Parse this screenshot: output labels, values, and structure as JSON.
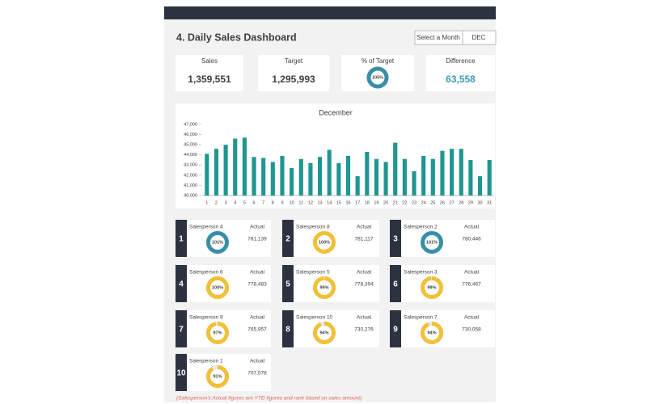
{
  "header": {
    "title": "4. Daily Sales Dashboard",
    "month_label": "Select a Month",
    "month": "DEC"
  },
  "kpis": [
    {
      "label": "Sales",
      "value": "1,359,551"
    },
    {
      "label": "Target",
      "value": "1,295,993"
    },
    {
      "label": "% of Target",
      "value": 105,
      "value_label": "105%",
      "color": "#3a8fa8"
    },
    {
      "label": "Difference",
      "value": "63,558",
      "color": "#3a9bb5"
    }
  ],
  "chart_data": {
    "type": "bar",
    "title": "December",
    "color": "#1f968f",
    "categories": [
      1,
      2,
      3,
      4,
      5,
      6,
      7,
      8,
      9,
      10,
      11,
      12,
      13,
      14,
      15,
      16,
      17,
      18,
      19,
      20,
      21,
      22,
      23,
      24,
      25,
      26,
      27,
      28,
      29,
      30,
      31
    ],
    "values": [
      44100,
      44600,
      45000,
      45600,
      45700,
      43800,
      43700,
      43300,
      43900,
      42700,
      43600,
      43200,
      43800,
      44500,
      43200,
      43900,
      41900,
      44300,
      43600,
      43300,
      45200,
      43600,
      42400,
      43900,
      43600,
      44400,
      44600,
      44600,
      43500,
      41900,
      43500
    ],
    "ylim": [
      40000,
      47000
    ],
    "yticks": [
      {
        "value": 40000,
        "label": "40,000"
      },
      {
        "value": 41000,
        "label": "41,000"
      },
      {
        "value": 42000,
        "label": "42,000"
      },
      {
        "value": 43000,
        "label": "43,000"
      },
      {
        "value": 44000,
        "label": "44,000"
      },
      {
        "value": 45000,
        "label": "45,000"
      },
      {
        "value": 46000,
        "label": "46,000"
      },
      {
        "value": 47000,
        "label": "47,000"
      }
    ]
  },
  "salespeople": [
    {
      "rank": 1,
      "name": "Salesperson 4",
      "actual_label": "Actual",
      "actual": "781,139",
      "percent": 101,
      "percent_label": "101%",
      "color": "#3a8fa8"
    },
    {
      "rank": 2,
      "name": "Salesperson 8",
      "actual_label": "Actual",
      "actual": "781,117",
      "percent": 100,
      "percent_label": "100%",
      "color": "#f2c037"
    },
    {
      "rank": 3,
      "name": "Salesperson 2",
      "actual_label": "Actual",
      "actual": "780,446",
      "percent": 101,
      "percent_label": "101%",
      "color": "#3a8fa8"
    },
    {
      "rank": 4,
      "name": "Salesperson 6",
      "actual_label": "Actual",
      "actual": "778,483",
      "percent": 100,
      "percent_label": "100%",
      "color": "#f2c037"
    },
    {
      "rank": 5,
      "name": "Salesperson 5",
      "actual_label": "Actual",
      "actual": "778,394",
      "percent": 99,
      "percent_label": "99%",
      "color": "#f2c037"
    },
    {
      "rank": 6,
      "name": "Salesperson 3",
      "actual_label": "Actual",
      "actual": "776,467",
      "percent": 99,
      "percent_label": "99%",
      "color": "#f2c037"
    },
    {
      "rank": 7,
      "name": "Salesperson 9",
      "actual_label": "Actual",
      "actual": "765,957",
      "percent": 97,
      "percent_label": "97%",
      "color": "#f2c037"
    },
    {
      "rank": 8,
      "name": "Salesperson 10",
      "actual_label": "Actual",
      "actual": "730,276",
      "percent": 94,
      "percent_label": "94%",
      "color": "#f2c037"
    },
    {
      "rank": 9,
      "name": "Salesperson 7",
      "actual_label": "Actual",
      "actual": "730,058",
      "percent": 94,
      "percent_label": "94%",
      "color": "#f2c037"
    },
    {
      "rank": 10,
      "name": "Salesperson 1",
      "actual_label": "Actual",
      "actual": "707,578",
      "percent": 91,
      "percent_label": "91%",
      "color": "#f2c037"
    }
  ],
  "footnote": "(Salesperson's Actual figures are YTD figures and rank based on sales amount)"
}
